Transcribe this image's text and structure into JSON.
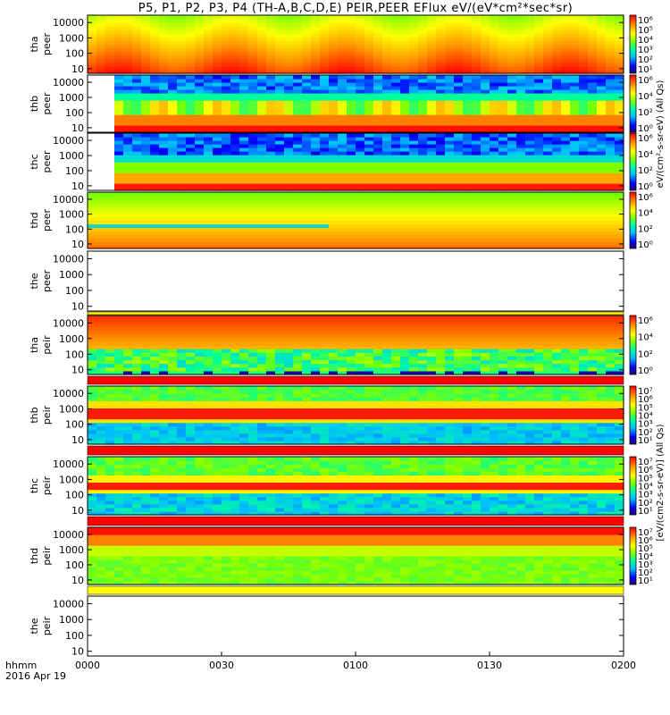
{
  "title": "P5, P1, P2, P3, P4 (TH-A,B,C,D,E) PEIR,PEER EFlux eV/(eV*cm²*sec*sr)",
  "colorbar_titles": {
    "upper": "eV/(cm²-s-sr-eV) (All Qs)",
    "lower": "[eV/(cm2-s-sr-eV)] (All Qs)"
  },
  "chart_data": {
    "type": "heatmap",
    "x_unit_label": "hhmm",
    "date_label": "2016 Apr 19",
    "x_ticks": [
      "0000",
      "0030",
      "0100",
      "0130",
      "0200"
    ],
    "xlim": [
      "0000",
      "0200"
    ],
    "y_scale": "log",
    "ylim": [
      5,
      30000
    ],
    "y_ticks": [
      "10",
      "100",
      "1000",
      "10000"
    ],
    "panels": [
      {
        "label_top": "tha",
        "label_bottom": "peer",
        "has_data": true,
        "colorbar_ticks": [
          "10⁶",
          "10⁵",
          "10⁴",
          "10³",
          "10²",
          "10¹"
        ],
        "description": "electron energy flux; high flux at all energies"
      },
      {
        "label_top": "thb",
        "label_bottom": "peer",
        "has_data": true,
        "colorbar_ticks": [
          "10⁶",
          "10⁴",
          "10²",
          "10⁰"
        ],
        "description": "electron energy flux; intense at low energies, gap before 0005"
      },
      {
        "label_top": "thc",
        "label_bottom": "peer",
        "has_data": true,
        "colorbar_ticks": [
          "10⁶",
          "10⁴",
          "10²",
          "10⁰"
        ],
        "description": "electron energy flux; sparse blue above 1 keV"
      },
      {
        "label_top": "thd",
        "label_bottom": "peer",
        "has_data": true,
        "colorbar_ticks": [
          "10⁶",
          "10⁴",
          "10²",
          "10⁰"
        ],
        "description": "electron energy flux"
      },
      {
        "label_top": "the",
        "label_bottom": "peer",
        "has_data": false,
        "colorbar_ticks": [],
        "description": "no data"
      },
      {
        "label_top": "tha",
        "label_bottom": "peir",
        "has_data": true,
        "colorbar_ticks": [
          "10⁶",
          "10⁴",
          "10²",
          "10⁰"
        ],
        "description": "ion energy flux"
      },
      {
        "label_top": "thb",
        "label_bottom": "peir",
        "has_data": true,
        "colorbar_ticks": [
          "10⁷",
          "10⁶",
          "10⁵",
          "10⁴",
          "10³",
          "10²",
          "10¹"
        ],
        "description": "ion energy flux; peak near 300-1000 eV"
      },
      {
        "label_top": "thc",
        "label_bottom": "peir",
        "has_data": true,
        "colorbar_ticks": [
          "10⁷",
          "10⁶",
          "10⁵",
          "10⁴",
          "10³",
          "10²",
          "10¹"
        ],
        "description": "ion energy flux; peak near 500 eV"
      },
      {
        "label_top": "thd",
        "label_bottom": "peir",
        "has_data": true,
        "colorbar_ticks": [
          "10⁷",
          "10⁶",
          "10⁵",
          "10⁴",
          "10³",
          "10²",
          "10¹"
        ],
        "description": "ion energy flux; peak above 5 keV"
      },
      {
        "label_top": "the",
        "label_bottom": "peir",
        "has_data": false,
        "colorbar_ticks": [],
        "description": "no data"
      }
    ]
  }
}
